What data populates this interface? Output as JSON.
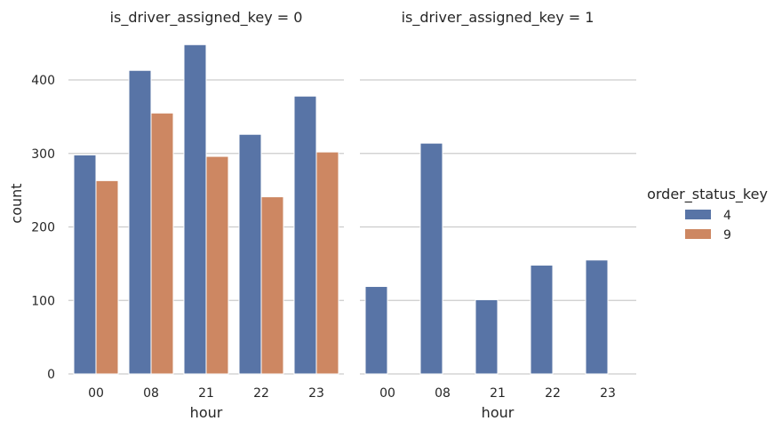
{
  "chart_data": {
    "type": "bar",
    "x_label": "hour",
    "y_label": "count",
    "categories": [
      "00",
      "08",
      "21",
      "22",
      "23"
    ],
    "ylim": [
      0,
      460
    ],
    "yticks": [
      0,
      100,
      200,
      300,
      400
    ],
    "grid": true,
    "legend": {
      "title": "order_status_key",
      "placement": "right",
      "entries": [
        {
          "label": "4",
          "color": "#5874a6"
        },
        {
          "label": "9",
          "color": "#cd8762"
        }
      ]
    },
    "panels": [
      {
        "title": "is_driver_assigned_key = 0",
        "series": [
          {
            "name": "4",
            "color": "#5874a6",
            "values": [
              298,
              413,
              448,
              326,
              378
            ]
          },
          {
            "name": "9",
            "color": "#cd8762",
            "values": [
              263,
              355,
              296,
              241,
              302
            ]
          }
        ]
      },
      {
        "title": "is_driver_assigned_key = 1",
        "series": [
          {
            "name": "4",
            "color": "#5874a6",
            "values": [
              119,
              314,
              101,
              148,
              155
            ]
          },
          {
            "name": "9",
            "color": "#cd8762",
            "values": [
              0,
              0,
              0,
              0,
              0
            ]
          }
        ]
      }
    ]
  }
}
